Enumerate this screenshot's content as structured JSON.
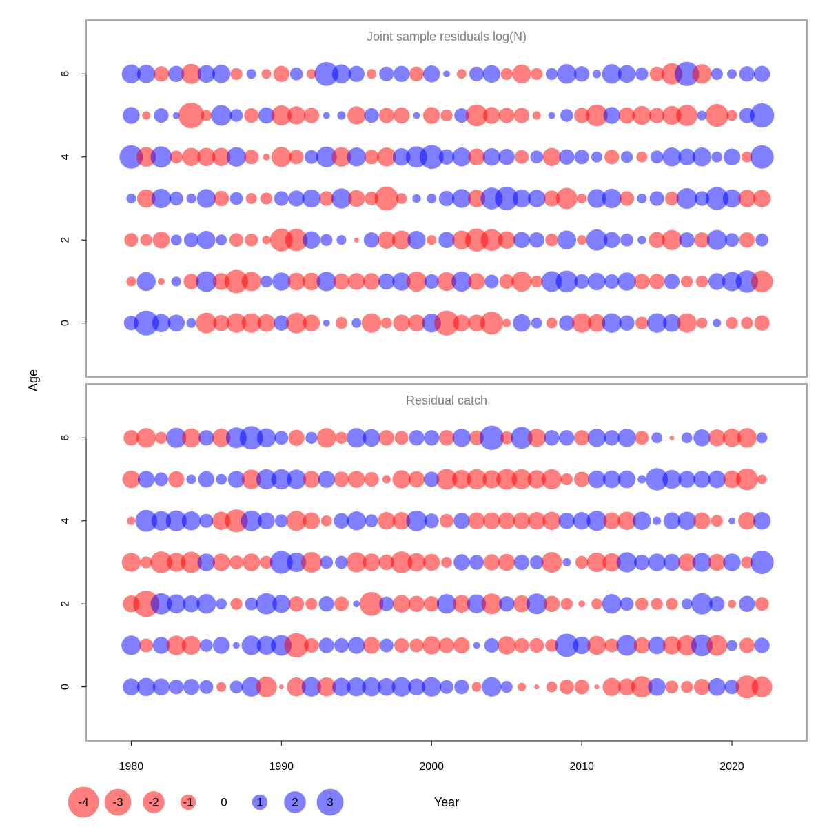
{
  "chart_data": {
    "type": "bubble",
    "xlabel": "Year",
    "ylabel": "Age",
    "xticks": [
      1980,
      1990,
      2000,
      2010,
      2020
    ],
    "yticks": [
      0,
      2,
      4,
      6
    ],
    "xlim": [
      1977,
      2025
    ],
    "ylim": [
      -1.3,
      7.3
    ],
    "years": [
      1980,
      1981,
      1982,
      1983,
      1984,
      1985,
      1986,
      1987,
      1988,
      1989,
      1990,
      1991,
      1992,
      1993,
      1994,
      1995,
      1996,
      1997,
      1998,
      1999,
      2000,
      2001,
      2002,
      2003,
      2004,
      2005,
      2006,
      2007,
      2008,
      2009,
      2010,
      2011,
      2012,
      2013,
      2014,
      2015,
      2016,
      2017,
      2018,
      2019,
      2020,
      2021,
      2022
    ],
    "ages": [
      0,
      1,
      2,
      3,
      4,
      5,
      6
    ],
    "colors": {
      "positive": "#0000FF",
      "negative": "#FF0000",
      "opacity": 0.5
    },
    "panels": [
      {
        "title": "Joint sample residuals log(N)",
        "residuals": {
          "6": [
            1.5,
            1.4,
            -1.0,
            1.1,
            -1.7,
            1.3,
            1.4,
            -0.6,
            0.4,
            -0.4,
            -1.1,
            0.7,
            -0.4,
            2.4,
            1.5,
            1.1,
            -0.4,
            0.9,
            1.1,
            -0.9,
            1.2,
            0.2,
            -0.4,
            0.9,
            1.3,
            -0.6,
            -1.5,
            -0.6,
            0.6,
            1.6,
            1.0,
            0.3,
            1.6,
            1.3,
            0.7,
            -0.9,
            -1.9,
            2.5,
            -1.6,
            0.6,
            0.4,
            1.0,
            1.1
          ],
          "5": [
            1.2,
            -0.3,
            0.9,
            0.2,
            -2.8,
            -0.5,
            1.8,
            0.7,
            -0.9,
            1.1,
            -1.7,
            -1.4,
            -1.0,
            0.2,
            0.3,
            -1.4,
            0.9,
            -1.0,
            -1.1,
            0.2,
            -1.2,
            -0.6,
            0.9,
            -2.0,
            -1.2,
            -1.0,
            -1.0,
            -0.3,
            0.2,
            0.7,
            -1.0,
            -2.0,
            1.2,
            -1.1,
            -1.5,
            -1.0,
            -1.5,
            -1.9,
            0.4,
            -2.2,
            -0.5,
            1.0,
            2.5
          ],
          "4": [
            2.3,
            -1.6,
            1.9,
            -0.7,
            -1.4,
            -1.4,
            -1.4,
            1.6,
            -0.9,
            -0.2,
            -1.7,
            -0.9,
            0.8,
            1.8,
            -1.6,
            1.5,
            -0.9,
            -1.5,
            1.3,
            1.9,
            2.4,
            1.0,
            1.5,
            -1.2,
            1.3,
            1.1,
            -0.8,
            0.7,
            -1.4,
            1.0,
            0.9,
            0.5,
            -0.9,
            0.6,
            -0.5,
            0.7,
            1.5,
            1.2,
            1.5,
            0.5,
            1.2,
            -0.5,
            2.3
          ],
          "3": [
            0.4,
            -1.4,
            1.6,
            0.8,
            0.4,
            1.5,
            -1.0,
            0.7,
            -0.5,
            -0.6,
            0.9,
            1.1,
            1.4,
            -0.9,
            1.7,
            -1.2,
            -0.8,
            -2.4,
            -0.5,
            0.3,
            0.4,
            1.0,
            1.5,
            -1.3,
            2.0,
            2.3,
            1.4,
            1.3,
            -1.1,
            -1.9,
            -0.4,
            1.5,
            1.6,
            -0.9,
            0.4,
            0.9,
            -0.8,
            1.8,
            0.9,
            2.2,
            1.4,
            -1.3,
            -1.3
          ],
          "2": [
            -0.8,
            -0.6,
            -1.2,
            0.5,
            0.9,
            1.4,
            0.5,
            -0.8,
            -0.7,
            -0.3,
            -2.2,
            -2.1,
            1.3,
            0.6,
            0.4,
            -0.1,
            1.0,
            -1.3,
            -1.5,
            1.4,
            -0.4,
            1.1,
            -1.5,
            -2.2,
            -2.0,
            -1.3,
            1.1,
            1.0,
            -0.7,
            1.5,
            -0.4,
            1.9,
            1.1,
            0.7,
            0.3,
            -1.1,
            -1.7,
            1.0,
            -1.0,
            1.7,
            0.8,
            -1.0,
            0.7
          ],
          "1": [
            -0.4,
            1.5,
            -0.2,
            0.4,
            -1.0,
            1.8,
            -1.2,
            -2.3,
            -1.6,
            0.6,
            1.4,
            -1.3,
            -1.3,
            1.6,
            -1.1,
            -1.2,
            -1.2,
            1.1,
            1.4,
            -1.7,
            0.9,
            -1.5,
            1.7,
            -1.2,
            0.8,
            -0.9,
            -1.7,
            -0.6,
            1.8,
            2.0,
            0.9,
            1.3,
            0.9,
            1.4,
            -1.0,
            -1.0,
            1.0,
            -0.6,
            -0.6,
            1.2,
            1.6,
            2.1,
            -2.0
          ],
          "0": [
            0.9,
            2.6,
            1.4,
            1.2,
            0.4,
            -1.8,
            -1.1,
            -1.6,
            -1.6,
            -1.3,
            1.0,
            -1.8,
            -1.2,
            0.2,
            -0.6,
            0.4,
            -1.6,
            -0.5,
            -1.2,
            -1.2,
            1.5,
            -2.6,
            -1.2,
            -1.2,
            -2.2,
            -0.3,
            1.3,
            0.5,
            -0.5,
            1.0,
            -1.6,
            -1.3,
            1.6,
            1.0,
            -0.7,
            1.6,
            1.3,
            -1.6,
            -0.5,
            0.3,
            -0.6,
            -0.6,
            -1.0
          ]
        }
      },
      {
        "title": "Residual catch",
        "residuals": {
          "6": [
            -1.0,
            -1.6,
            -0.6,
            1.7,
            -1.5,
            1.0,
            -1.4,
            1.8,
            2.3,
            1.5,
            0.8,
            -1.1,
            0.6,
            -1.6,
            -0.6,
            1.6,
            1.3,
            -1.0,
            -0.8,
            1.0,
            1.0,
            -1.0,
            1.4,
            -0.9,
            2.5,
            -0.7,
            2.0,
            -1.4,
            1.0,
            1.0,
            -1.0,
            1.4,
            1.0,
            1.4,
            -0.8,
            0.5,
            -0.1,
            0.5,
            1.2,
            -1.2,
            -1.4,
            -1.6,
            0.5
          ],
          "5": [
            -1.3,
            1.2,
            0.8,
            -1.1,
            0.4,
            1.1,
            0.5,
            1.2,
            -1.6,
            1.7,
            1.7,
            1.6,
            -1.2,
            1.2,
            -1.0,
            -1.2,
            -0.9,
            -0.3,
            -1.4,
            -1.1,
            1.0,
            -1.8,
            -1.5,
            -1.7,
            -1.4,
            -1.8,
            -1.7,
            -1.4,
            -1.7,
            -0.6,
            -1.0,
            1.3,
            1.3,
            1.3,
            0.3,
            2.1,
            1.5,
            1.2,
            1.2,
            1.3,
            -1.3,
            -2.0,
            -0.4
          ],
          "4": [
            -0.3,
            2.0,
            1.6,
            1.8,
            1.5,
            0.8,
            -1.4,
            -2.2,
            1.8,
            1.2,
            0.7,
            -1.7,
            -1.2,
            -0.5,
            1.0,
            1.5,
            0.7,
            -1.3,
            -1.3,
            1.8,
            0.9,
            -0.8,
            1.1,
            -1.2,
            -1.2,
            -1.2,
            -1.2,
            -1.3,
            -1.4,
            1.1,
            1.3,
            1.7,
            -1.2,
            -1.4,
            1.4,
            0.3,
            1.2,
            1.4,
            -1.2,
            -0.6,
            0.2,
            -1.3,
            1.3
          ],
          "3": [
            -1.5,
            -0.6,
            -2.0,
            -1.5,
            -1.9,
            1.3,
            -1.3,
            -0.8,
            -1.3,
            -0.7,
            2.2,
            1.6,
            -1.8,
            0.7,
            0.7,
            -1.7,
            -1.3,
            -1.0,
            -2.0,
            -1.4,
            -1.2,
            -0.5,
            1.1,
            0.9,
            -1.1,
            -1.2,
            1.0,
            0.8,
            -1.8,
            0.3,
            -0.7,
            -1.6,
            -1.4,
            1.7,
            1.0,
            1.3,
            1.2,
            -1.3,
            1.5,
            -1.2,
            1.3,
            -0.6,
            2.3
          ],
          "2": [
            -1.2,
            -2.9,
            1.9,
            1.5,
            1.2,
            1.6,
            0.5,
            -0.6,
            0.7,
            1.9,
            1.4,
            -1.0,
            -0.6,
            1.0,
            -0.9,
            0.2,
            -2.4,
            0.9,
            -1.3,
            -1.1,
            -1.0,
            1.6,
            -1.3,
            1.5,
            -1.8,
            1.0,
            -1.2,
            1.8,
            -1.1,
            -0.6,
            -0.2,
            -0.5,
            1.6,
            0.8,
            -0.7,
            -0.6,
            -0.6,
            0.5,
            1.9,
            1.0,
            -0.3,
            1.1,
            -0.8
          ],
          "1": [
            1.6,
            -0.8,
            1.2,
            -1.6,
            -1.5,
            0.7,
            1.2,
            0.2,
            1.6,
            1.5,
            1.8,
            -2.5,
            -0.9,
            1.0,
            0.9,
            1.2,
            -1.2,
            0.8,
            -0.9,
            -0.8,
            -1.4,
            -1.0,
            -1.1,
            0.2,
            0.9,
            -1.4,
            -0.9,
            -0.9,
            -0.7,
            2.3,
            1.3,
            -1.5,
            -0.8,
            1.8,
            -1.1,
            1.3,
            -1.4,
            -1.7,
            2.0,
            -1.8,
            0.5,
            -1.0,
            1.0
          ],
          "0": [
            1.2,
            1.4,
            1.2,
            0.9,
            1.1,
            0.8,
            -0.4,
            0.7,
            1.6,
            -1.8,
            -0.1,
            -1.5,
            1.6,
            -1.5,
            1.4,
            1.5,
            1.5,
            1.3,
            1.6,
            1.2,
            1.6,
            0.8,
            0.9,
            -0.4,
            1.6,
            0.6,
            -0.3,
            -0.1,
            -0.5,
            -0.9,
            -0.9,
            -0.1,
            -1.4,
            -1.2,
            -1.9,
            1.3,
            -0.7,
            -0.6,
            -1.1,
            1.3,
            0.9,
            -2.2,
            -1.8
          ]
        }
      }
    ],
    "legend": {
      "values": [
        -4,
        -3,
        -2,
        -1,
        0,
        1,
        2,
        3
      ],
      "labels": [
        "-4",
        "-3",
        "-2",
        "-1",
        "0",
        "1",
        "2",
        "3"
      ]
    }
  }
}
